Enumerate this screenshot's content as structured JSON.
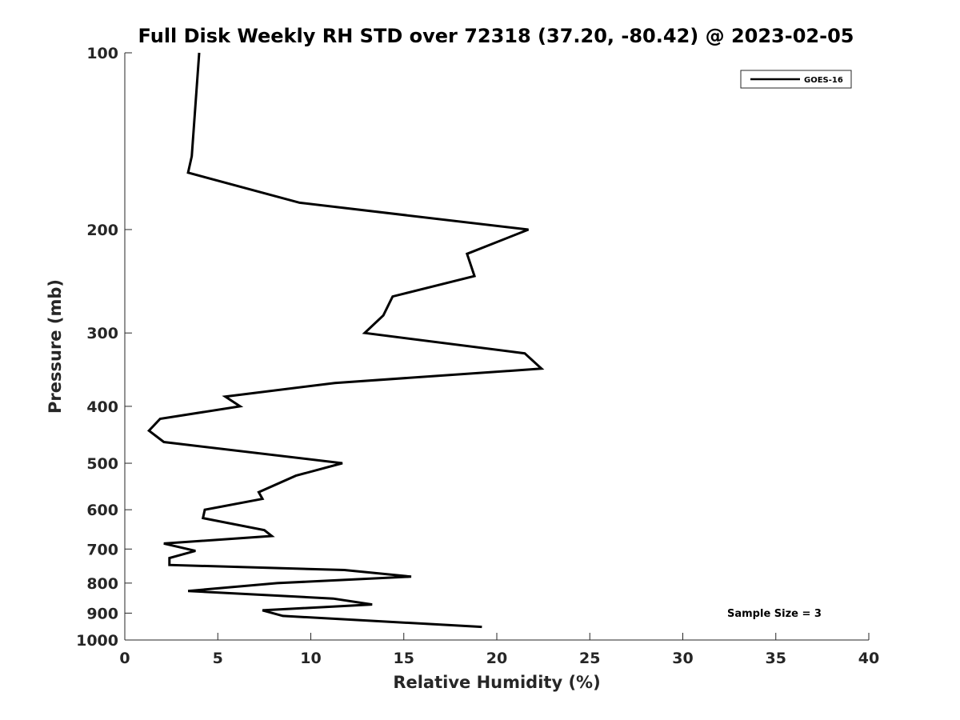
{
  "chart_data": {
    "type": "line",
    "title": "Full Disk Weekly RH STD over 72318 (37.20, -80.42) @ 2023-02-05",
    "xlabel": "Relative Humidity (%)",
    "ylabel": "Pressure (mb)",
    "xlim": [
      0,
      40
    ],
    "ylim": [
      100,
      1000
    ],
    "y_scale": "log",
    "y_reversed": true,
    "grid": false,
    "legend_position": "top-right",
    "x_ticks": [
      "0",
      "5",
      "10",
      "15",
      "20",
      "25",
      "30",
      "35",
      "40"
    ],
    "y_ticks": [
      {
        "value": 100,
        "label": "100"
      },
      {
        "value": 200,
        "label": "200"
      },
      {
        "value": 300,
        "label": "300"
      },
      {
        "value": 400,
        "label": "400"
      },
      {
        "value": 500,
        "label": "500"
      },
      {
        "value": 600,
        "label": "600"
      },
      {
        "value": 700,
        "label": "700"
      },
      {
        "value": 800,
        "label": "800"
      },
      {
        "value": 900,
        "label": "900"
      },
      {
        "value": 1000,
        "label": "1000"
      }
    ],
    "series": [
      {
        "name": "GOES-16",
        "color": "#000000",
        "points": [
          {
            "rh": 4.0,
            "p": 100
          },
          {
            "rh": 3.6,
            "p": 150
          },
          {
            "rh": 3.4,
            "p": 160
          },
          {
            "rh": 9.4,
            "p": 180
          },
          {
            "rh": 21.7,
            "p": 200
          },
          {
            "rh": 18.4,
            "p": 220
          },
          {
            "rh": 18.8,
            "p": 240
          },
          {
            "rh": 14.4,
            "p": 260
          },
          {
            "rh": 13.9,
            "p": 280
          },
          {
            "rh": 12.9,
            "p": 300
          },
          {
            "rh": 21.5,
            "p": 325
          },
          {
            "rh": 22.4,
            "p": 345
          },
          {
            "rh": 11.3,
            "p": 365
          },
          {
            "rh": 5.4,
            "p": 385
          },
          {
            "rh": 6.2,
            "p": 400
          },
          {
            "rh": 1.9,
            "p": 420
          },
          {
            "rh": 1.3,
            "p": 440
          },
          {
            "rh": 2.1,
            "p": 460
          },
          {
            "rh": 11.7,
            "p": 500
          },
          {
            "rh": 9.2,
            "p": 525
          },
          {
            "rh": 7.2,
            "p": 560
          },
          {
            "rh": 7.4,
            "p": 575
          },
          {
            "rh": 4.3,
            "p": 600
          },
          {
            "rh": 4.2,
            "p": 620
          },
          {
            "rh": 7.5,
            "p": 650
          },
          {
            "rh": 7.9,
            "p": 665
          },
          {
            "rh": 2.1,
            "p": 685
          },
          {
            "rh": 3.8,
            "p": 705
          },
          {
            "rh": 2.4,
            "p": 725
          },
          {
            "rh": 2.4,
            "p": 745
          },
          {
            "rh": 11.8,
            "p": 760
          },
          {
            "rh": 15.4,
            "p": 780
          },
          {
            "rh": 8.2,
            "p": 800
          },
          {
            "rh": 3.4,
            "p": 825
          },
          {
            "rh": 11.2,
            "p": 850
          },
          {
            "rh": 13.3,
            "p": 870
          },
          {
            "rh": 7.4,
            "p": 890
          },
          {
            "rh": 8.5,
            "p": 910
          },
          {
            "rh": 19.2,
            "p": 950
          }
        ]
      }
    ],
    "annotation": "Sample Size = 3"
  }
}
